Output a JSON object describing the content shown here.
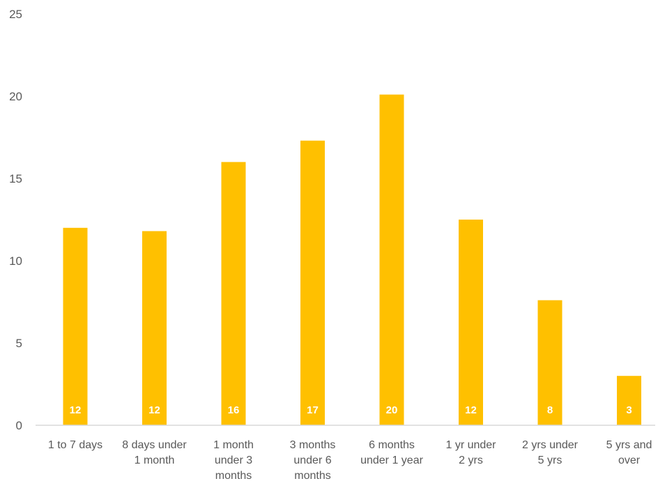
{
  "chart_data": {
    "type": "bar",
    "categories": [
      "1 to 7 days",
      "8 days under 1 month",
      "1 month under 3 months",
      "3 months under 6 months",
      "6 months under 1 year",
      "1 yr under 2 yrs",
      "2 yrs under 5 yrs",
      "5 yrs and over"
    ],
    "category_lines": [
      [
        "1 to 7 days"
      ],
      [
        "8 days under",
        "1 month"
      ],
      [
        "1 month",
        "under 3",
        "months"
      ],
      [
        "3 months",
        "under 6",
        "months"
      ],
      [
        "6 months",
        "under 1 year"
      ],
      [
        "1 yr under",
        "2 yrs"
      ],
      [
        "2 yrs under",
        "5 yrs"
      ],
      [
        "5 yrs and",
        "over"
      ]
    ],
    "values": [
      12,
      11.8,
      16,
      17.3,
      20.1,
      12.5,
      7.6,
      3
    ],
    "data_labels": [
      "12",
      "12",
      "16",
      "17",
      "20",
      "12",
      "8",
      "3"
    ],
    "yticks": [
      "0",
      "5",
      "10",
      "15",
      "20",
      "25"
    ],
    "ylim": [
      0,
      25
    ],
    "title": "",
    "xlabel": "",
    "ylabel": "",
    "grid": false,
    "legend": "none",
    "bar_color": "#FFC000",
    "axis_color": "#D9D9D9",
    "label_color": "#595959",
    "data_label_color": "#FFFFFF"
  }
}
